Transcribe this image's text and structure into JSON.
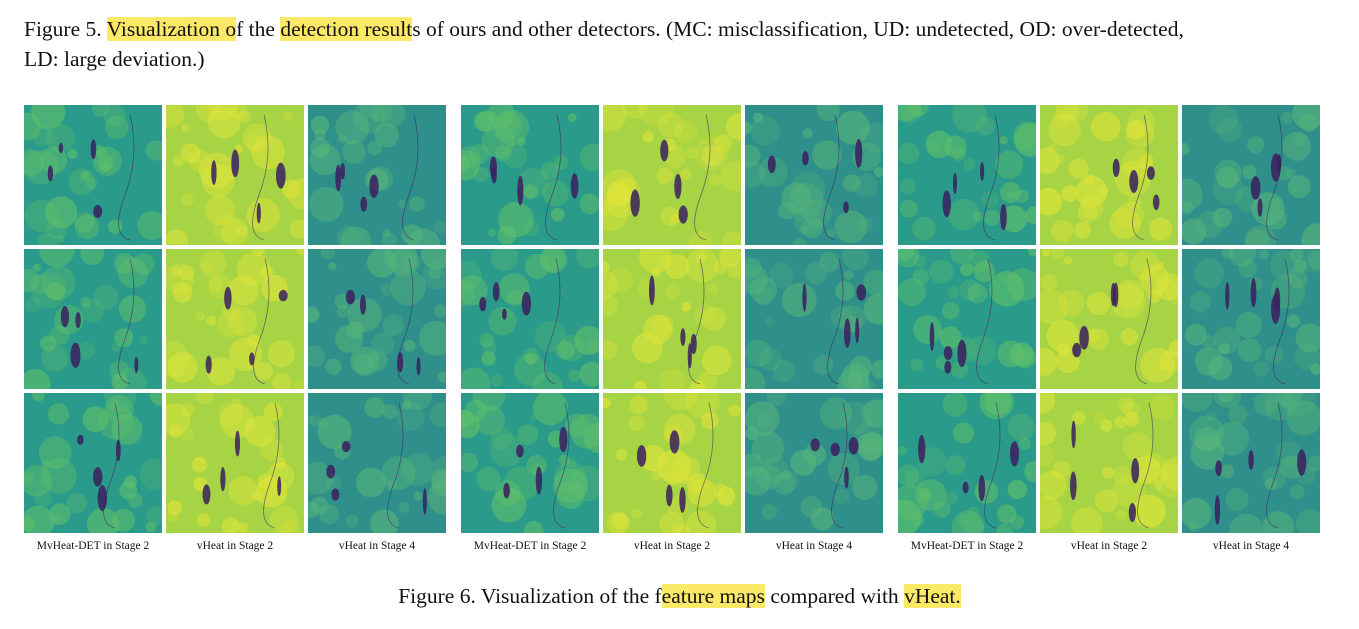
{
  "fig5": {
    "label": "Figure 5.",
    "hl1": "Visualization o",
    "t1": "f the",
    "hl2": "detection result",
    "t2": "s of ours and other detectors. (MC: misclassification, UD: undetected, OD: over-detected,",
    "t3": "LD: large deviation.)"
  },
  "column_labels": [
    "MvHeat-DET in Stage 2",
    "vHeat in Stage 2",
    "vHeat in Stage 4"
  ],
  "fig6": {
    "t1": "Figure 6. Visualization of the f",
    "hl1": "eature maps",
    "t2": "compared with",
    "hl2": "vHeat."
  },
  "colors": {
    "highlight": "#fde968",
    "teal": "#2a9a8a",
    "lime": "#a6d444",
    "yellow": "#dfe43a",
    "dark": "#3b1f5e"
  }
}
